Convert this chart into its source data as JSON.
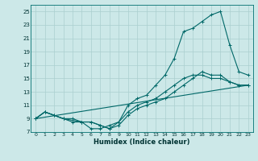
{
  "xlabel": "Humidex (Indice chaleur)",
  "bg_color": "#cce8e8",
  "grid_color": "#aacfcf",
  "line_color": "#006868",
  "xlim": [
    -0.5,
    23.5
  ],
  "ylim": [
    7,
    26
  ],
  "xticks": [
    0,
    1,
    2,
    3,
    4,
    5,
    6,
    7,
    8,
    9,
    10,
    11,
    12,
    13,
    14,
    15,
    16,
    17,
    18,
    19,
    20,
    21,
    22,
    23
  ],
  "yticks": [
    7,
    9,
    11,
    13,
    15,
    17,
    19,
    21,
    23,
    25
  ],
  "line1_x": [
    0,
    1,
    2,
    3,
    4,
    5,
    6,
    7,
    8,
    9,
    10,
    11,
    12,
    13,
    14,
    15,
    16,
    17,
    18,
    19,
    20,
    21,
    22,
    23
  ],
  "line1_y": [
    9,
    10,
    9.5,
    9,
    8.5,
    8.5,
    7.5,
    7.5,
    8,
    8.5,
    11,
    12,
    12.5,
    14,
    15.5,
    18,
    22,
    22.5,
    23.5,
    24.5,
    25,
    20,
    16,
    15.5
  ],
  "line2_x": [
    0,
    1,
    2,
    3,
    4,
    5,
    6,
    7,
    8,
    9,
    10,
    11,
    12,
    13,
    14,
    15,
    16,
    17,
    18,
    19,
    20,
    21,
    22,
    23
  ],
  "line2_y": [
    9,
    10,
    9.5,
    9,
    9,
    8.5,
    8.5,
    8,
    7.5,
    8,
    9.5,
    10.5,
    11,
    11.5,
    12,
    13,
    14,
    15,
    16,
    15.5,
    15.5,
    14.5,
    14,
    14
  ],
  "line3_x": [
    0,
    1,
    3,
    5,
    6,
    7,
    8,
    9,
    10,
    11,
    12,
    13,
    14,
    15,
    16,
    17,
    18,
    19,
    20,
    21,
    22,
    23
  ],
  "line3_y": [
    9,
    10,
    9,
    8.5,
    8.5,
    8,
    7.5,
    8.5,
    10,
    11,
    11.5,
    12,
    13,
    14,
    15,
    15.5,
    15.5,
    15,
    15,
    14.5,
    14,
    14
  ],
  "line4_x": [
    0,
    23
  ],
  "line4_y": [
    9,
    14
  ]
}
